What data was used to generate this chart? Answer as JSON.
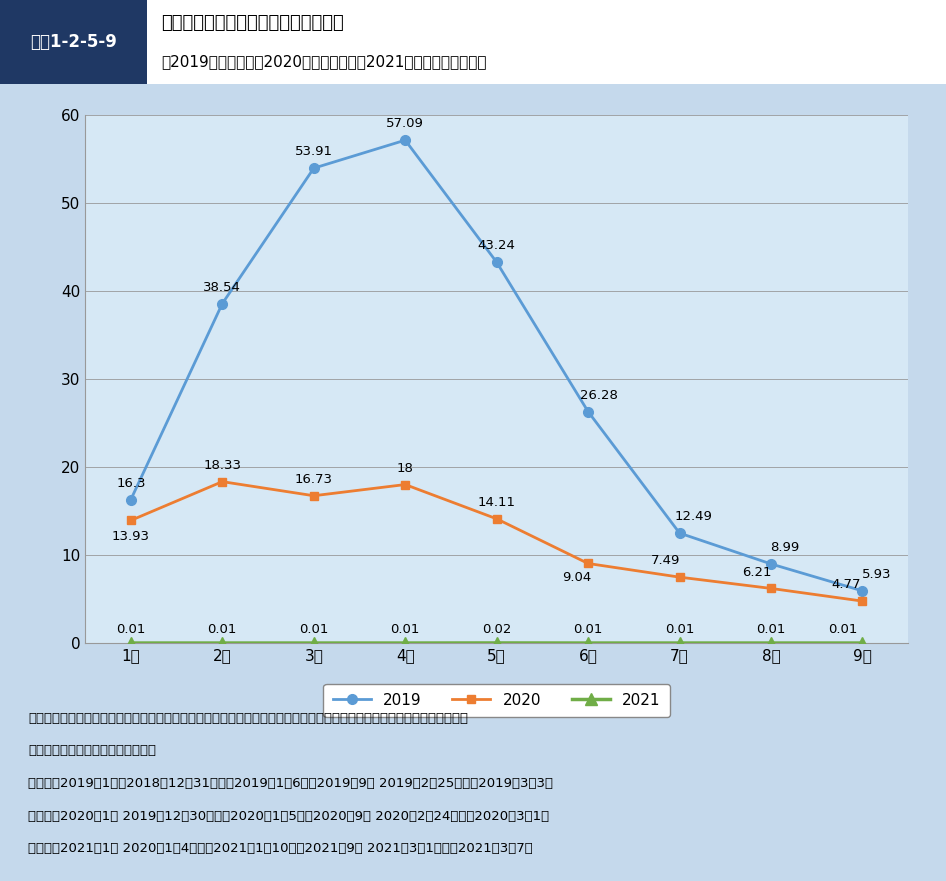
{
  "weeks": [
    "1週",
    "2週",
    "3週",
    "4週",
    "5週",
    "6週",
    "7週",
    "8週",
    "9週"
  ],
  "data_2019": [
    16.3,
    38.54,
    53.91,
    57.09,
    43.24,
    26.28,
    12.49,
    8.99,
    5.93
  ],
  "data_2020": [
    13.93,
    18.33,
    16.73,
    18.0,
    14.11,
    9.04,
    7.49,
    6.21,
    4.77
  ],
  "data_2021": [
    0.01,
    0.01,
    0.01,
    0.01,
    0.02,
    0.01,
    0.01,
    0.01,
    0.01
  ],
  "color_2019": "#5B9BD5",
  "color_2020": "#ED7D31",
  "color_2021": "#70AD47",
  "ylim": [
    0,
    60
  ],
  "yticks": [
    0,
    10,
    20,
    30,
    40,
    50,
    60
  ],
  "title_box_label": "図表1-2-5-9",
  "title_main": "インフルエンザ定点当たり報告数推移",
  "title_sub": "（2019年１〜９週、2020年１〜９週及び2021年１〜９週の比較）",
  "header_label_bg": "#1F3864",
  "chart_bg": "#D6E8F5",
  "outer_bg": "#C5D9EC",
  "footer_line1": "資料：国立感染症研究所感染症疫学センターインフルエンザ流行レベルマップより厚生労働省政策統括官付政策立案・評価",
  "footer_line2": "　　　担当参事官室において作成。",
  "note_line1": "（注）　2019年1週　2018年12月31日から2019年1月6日、2019年9週 2019年2月25日から2019年3月3日",
  "note_line2": "　　　　2020年1週 2019年12月30日から2020年1月5日、2020年9週 2020年2月24日から2020年3月1日",
  "note_line3": "　　　　2021年1週 2020年1月4日から2021年1月10日、2021年9週 2021年3月1日から2021年3月7日",
  "legend_2019": "2019",
  "legend_2020": "2020",
  "legend_2021": "2021"
}
